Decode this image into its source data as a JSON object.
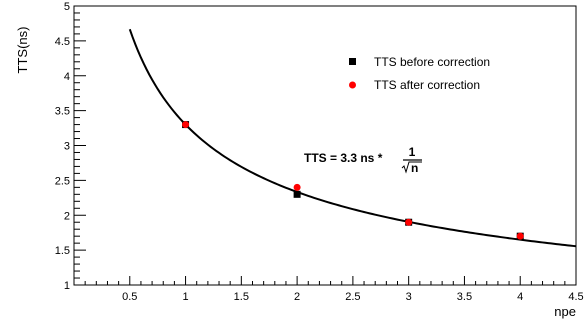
{
  "chart_data": {
    "type": "scatter",
    "title": "",
    "xlabel": "npe",
    "ylabel": "TTS(ns)",
    "xlim": [
      0,
      4.5
    ],
    "ylim": [
      1,
      5
    ],
    "x_ticks": [
      "0.5",
      "1",
      "1.5",
      "2",
      "2.5",
      "3",
      "3.5",
      "4",
      "4.5"
    ],
    "y_ticks": [
      "1",
      "1.5",
      "2",
      "2.5",
      "3",
      "3.5",
      "4",
      "4.5",
      "5"
    ],
    "grid": false,
    "legend_position": "top-right",
    "series": [
      {
        "name": "TTS before correction",
        "marker": "square",
        "color": "#000000",
        "points": [
          {
            "x": 1,
            "y": 3.3
          },
          {
            "x": 2,
            "y": 2.3
          },
          {
            "x": 3,
            "y": 1.9
          },
          {
            "x": 4,
            "y": 1.7
          }
        ]
      },
      {
        "name": "TTS after correction",
        "marker": "circle",
        "color": "#ff0000",
        "points": [
          {
            "x": 1,
            "y": 3.3
          },
          {
            "x": 2,
            "y": 2.4
          },
          {
            "x": 3,
            "y": 1.9
          },
          {
            "x": 4,
            "y": 1.7
          }
        ]
      }
    ],
    "fit": {
      "coefficient": 3.3,
      "x_start": 0.5,
      "x_end": 4.5
    },
    "annotation": {
      "prefix": "TTS = 3.3 ns *",
      "numerator": "1",
      "denominator": "n"
    }
  }
}
